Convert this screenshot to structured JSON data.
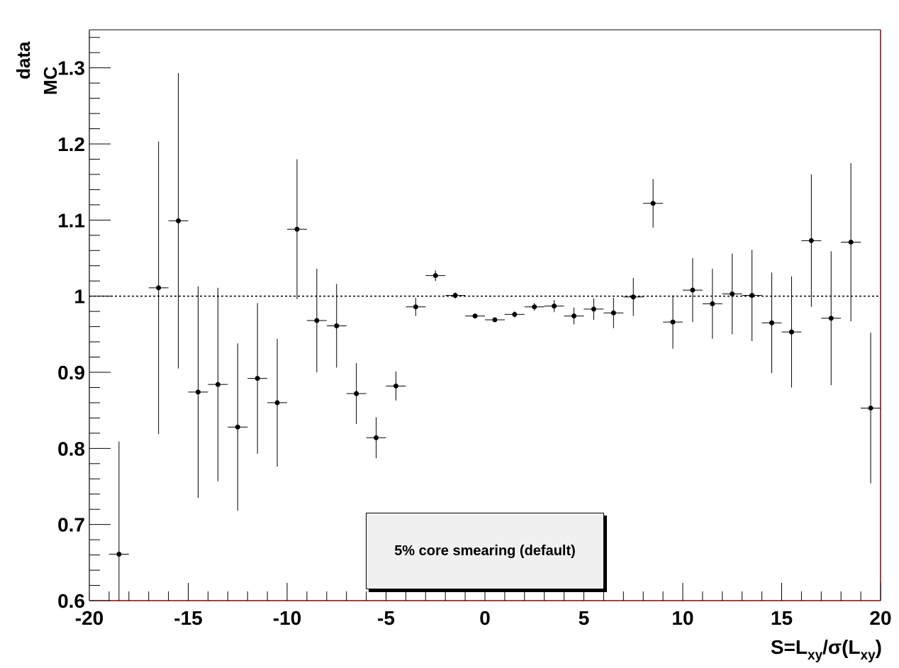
{
  "chart_data": {
    "type": "scatter",
    "title": "",
    "xlabel": "S=L_xy/σ(L_xy)",
    "xlabel_parts": {
      "s_eq": "S=L",
      "sub1": "xy",
      "slash_sigma": "/σ(L",
      "sub2": "xy",
      "close": ")"
    },
    "ylabel_num": "data",
    "ylabel_den": "MC",
    "xlim": [
      -20,
      20
    ],
    "ylim": [
      0.6,
      1.35
    ],
    "x_ticks": [
      -20,
      -15,
      -10,
      -5,
      0,
      5,
      10,
      15,
      20
    ],
    "x_tick_labels": [
      "-20",
      "-15",
      "-10",
      "-5",
      "0",
      "5",
      "10",
      "15",
      "20"
    ],
    "y_ticks": [
      0.6,
      0.7,
      0.8,
      0.9,
      1.0,
      1.1,
      1.2,
      1.3
    ],
    "y_tick_labels": [
      "0.6",
      "0.7",
      "0.8",
      "0.9",
      "1",
      "1.1",
      "1.2",
      "1.3"
    ],
    "reference_line": 1.0,
    "legend_text": "5% core smearing (default)",
    "x_bin_halfwidth": 0.5,
    "points": [
      {
        "x": -18.5,
        "y": 0.661,
        "err": 0.148
      },
      {
        "x": -16.5,
        "y": 1.011,
        "err": 0.192
      },
      {
        "x": -15.5,
        "y": 1.099,
        "err": 0.194
      },
      {
        "x": -14.5,
        "y": 0.874,
        "err": 0.139
      },
      {
        "x": -13.5,
        "y": 0.884,
        "err": 0.127
      },
      {
        "x": -12.5,
        "y": 0.828,
        "err": 0.11
      },
      {
        "x": -11.5,
        "y": 0.892,
        "err": 0.099
      },
      {
        "x": -10.5,
        "y": 0.86,
        "err": 0.084
      },
      {
        "x": -9.5,
        "y": 1.088,
        "err": 0.092
      },
      {
        "x": -8.5,
        "y": 0.968,
        "err": 0.068
      },
      {
        "x": -7.5,
        "y": 0.961,
        "err": 0.055
      },
      {
        "x": -6.5,
        "y": 0.872,
        "err": 0.04
      },
      {
        "x": -5.5,
        "y": 0.814,
        "err": 0.027
      },
      {
        "x": -4.5,
        "y": 0.882,
        "err": 0.019
      },
      {
        "x": -3.5,
        "y": 0.986,
        "err": 0.012
      },
      {
        "x": -2.5,
        "y": 1.027,
        "err": 0.007
      },
      {
        "x": -1.5,
        "y": 1.001,
        "err": 0.004
      },
      {
        "x": -0.5,
        "y": 0.974,
        "err": 0.003
      },
      {
        "x": 0.5,
        "y": 0.969,
        "err": 0.003
      },
      {
        "x": 1.5,
        "y": 0.976,
        "err": 0.004
      },
      {
        "x": 2.5,
        "y": 0.986,
        "err": 0.005
      },
      {
        "x": 3.5,
        "y": 0.987,
        "err": 0.008
      },
      {
        "x": 4.5,
        "y": 0.974,
        "err": 0.011
      },
      {
        "x": 5.5,
        "y": 0.983,
        "err": 0.014
      },
      {
        "x": 6.5,
        "y": 0.978,
        "err": 0.02
      },
      {
        "x": 7.5,
        "y": 0.999,
        "err": 0.025
      },
      {
        "x": 8.5,
        "y": 1.122,
        "err": 0.032
      },
      {
        "x": 9.5,
        "y": 0.966,
        "err": 0.035
      },
      {
        "x": 10.5,
        "y": 1.008,
        "err": 0.042
      },
      {
        "x": 11.5,
        "y": 0.99,
        "err": 0.046
      },
      {
        "x": 12.5,
        "y": 1.003,
        "err": 0.053
      },
      {
        "x": 13.5,
        "y": 1.001,
        "err": 0.06
      },
      {
        "x": 14.5,
        "y": 0.965,
        "err": 0.066
      },
      {
        "x": 15.5,
        "y": 0.953,
        "err": 0.073
      },
      {
        "x": 16.5,
        "y": 1.073,
        "err": 0.087
      },
      {
        "x": 17.5,
        "y": 0.971,
        "err": 0.088
      },
      {
        "x": 18.5,
        "y": 1.071,
        "err": 0.104
      },
      {
        "x": 19.5,
        "y": 0.853,
        "err": 0.099
      }
    ],
    "colors": {
      "markers": "#000000",
      "axes": "#000000",
      "right_border": "#8b0000",
      "legend_fill": "#f0f0f0"
    }
  }
}
